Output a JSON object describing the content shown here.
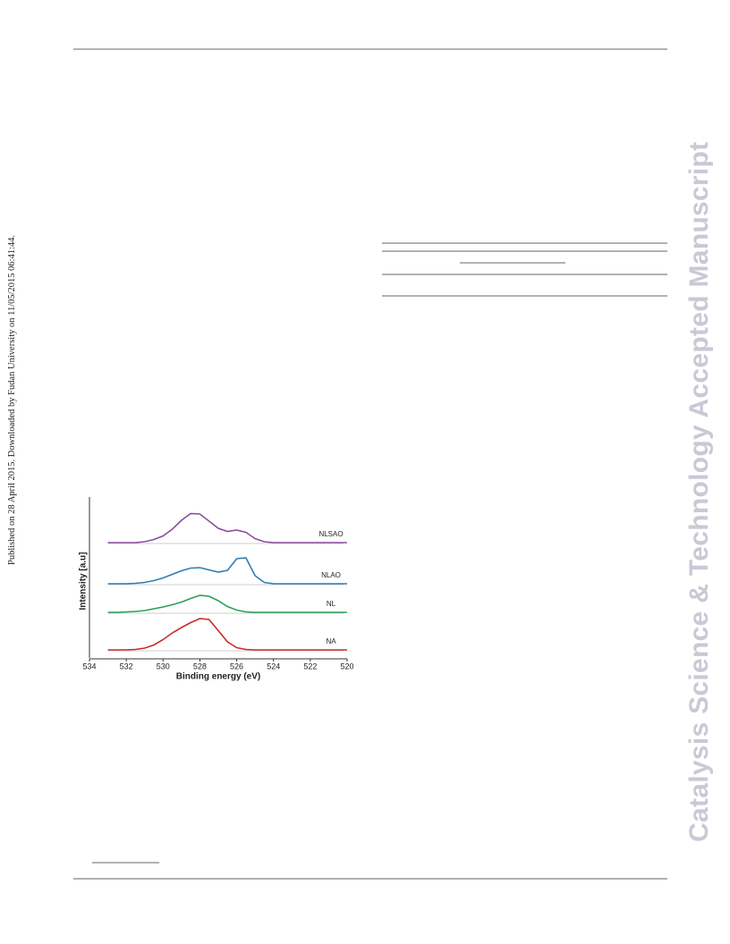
{
  "side_note": "Published on 28 April 2015. Downloaded by Fudan University on 11/05/2015 06:41:44.",
  "watermark": "Catalysis Science & Technology Accepted Manuscript",
  "chart_data": {
    "type": "line",
    "xlabel": "Binding energy (eV)",
    "ylabel": "Intensity [a.u]",
    "xlim": [
      534,
      520
    ],
    "xticks": [
      534,
      532,
      530,
      528,
      526,
      524,
      522,
      520
    ],
    "ylim": [
      0,
      100
    ],
    "x": [
      533,
      532.5,
      532,
      531.5,
      531,
      530.5,
      530,
      529.5,
      529,
      528.5,
      528,
      527.5,
      527,
      526.5,
      526,
      525.5,
      525,
      524.5,
      524,
      523.5,
      523,
      522.5,
      522,
      521.5,
      521,
      520.5,
      520
    ],
    "series": [
      {
        "name": "NLSAO",
        "color": "#8a4f9e",
        "values": [
          2,
          2,
          2,
          2,
          4,
          9,
          17,
          32,
          52,
          67,
          66,
          50,
          34,
          27,
          30,
          25,
          11,
          4,
          2,
          2,
          2,
          2,
          2,
          2,
          2,
          2,
          2
        ]
      },
      {
        "name": "NLAO",
        "color": "#2f7db3",
        "values": [
          2,
          2,
          2,
          3,
          5,
          9,
          15,
          23,
          31,
          37,
          38,
          33,
          28,
          32,
          58,
          60,
          20,
          5,
          2,
          2,
          2,
          2,
          2,
          2,
          2,
          2,
          2
        ]
      },
      {
        "name": "NL",
        "color": "#2a9f5a",
        "values": [
          2,
          2,
          3,
          4,
          6,
          10,
          14,
          19,
          25,
          33,
          40,
          38,
          28,
          15,
          7,
          3,
          2,
          2,
          2,
          2,
          2,
          2,
          2,
          2,
          2,
          2,
          2
        ]
      },
      {
        "name": "NA",
        "color": "#cc2b2b",
        "values": [
          2,
          2,
          2,
          3,
          6,
          13,
          25,
          40,
          52,
          63,
          72,
          70,
          45,
          20,
          7,
          3,
          2,
          2,
          2,
          2,
          2,
          2,
          2,
          2,
          2,
          2,
          2
        ]
      }
    ]
  }
}
